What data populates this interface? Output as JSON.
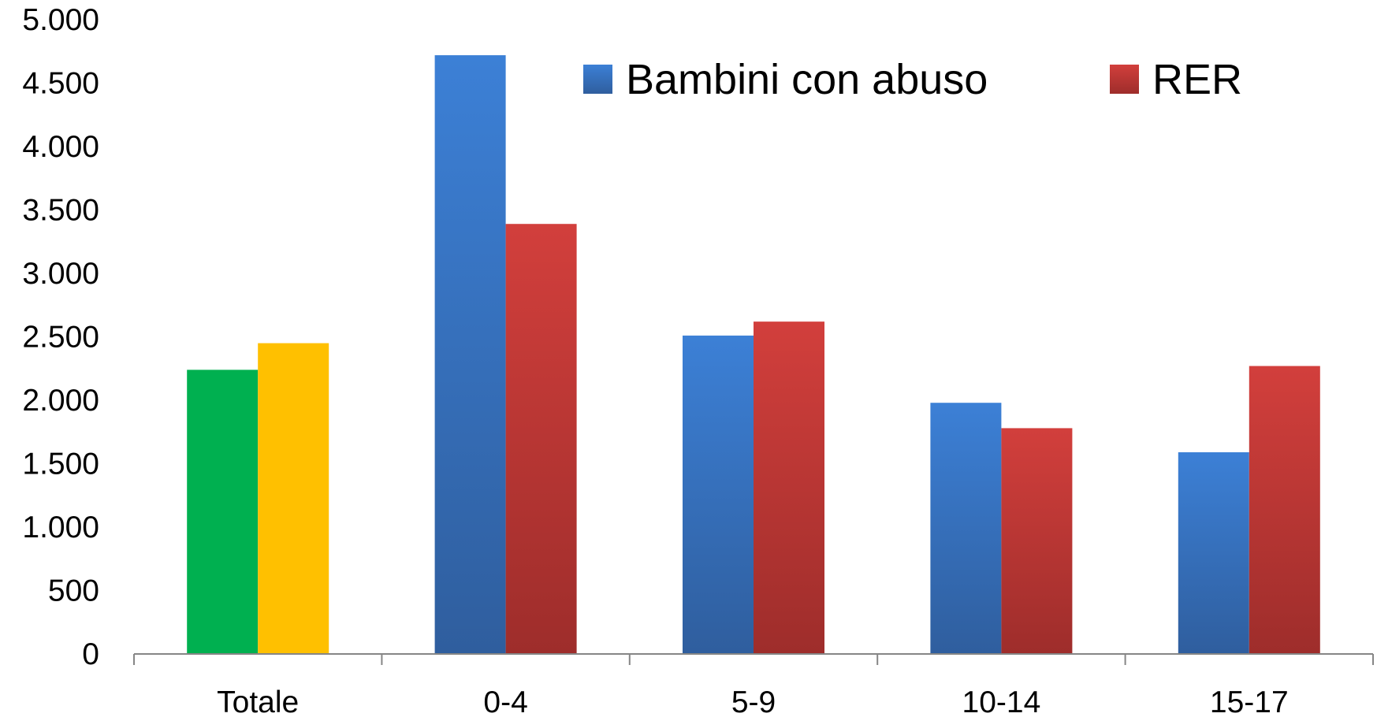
{
  "chart_data": {
    "type": "bar",
    "title": "",
    "xlabel": "",
    "ylabel": "",
    "ylim": [
      0,
      5000
    ],
    "yticks": [
      0,
      500,
      1000,
      1500,
      2000,
      2500,
      3000,
      3500,
      4000,
      4500,
      5000
    ],
    "ytick_labels": [
      "0",
      "500",
      "1.000",
      "1.500",
      "2.000",
      "2.500",
      "3.000",
      "3.500",
      "4.000",
      "4.500",
      "5.000"
    ],
    "categories": [
      "Totale",
      "0-4",
      "5-9",
      "10-14",
      "15-17"
    ],
    "series": [
      {
        "name": "Bambini con abuso",
        "color": "#3A78C9",
        "values": [
          2240,
          4720,
          2510,
          1980,
          1590
        ],
        "point_colors": [
          "#00B050",
          null,
          null,
          null,
          null
        ]
      },
      {
        "name": "RER",
        "color": "#C9393A",
        "values": [
          2450,
          3390,
          2620,
          1780,
          2270
        ],
        "point_colors": [
          "#FFC000",
          null,
          null,
          null,
          null
        ]
      }
    ],
    "legend": {
      "position": "top-right"
    },
    "grid": false
  }
}
